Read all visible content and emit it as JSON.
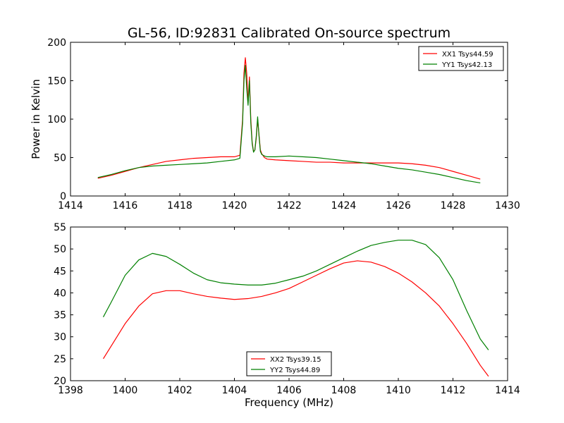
{
  "figure": {
    "title": "GL-56, ID:92831 Calibrated On-source spectrum",
    "colors": {
      "xx": "#ff0000",
      "yy": "#008000",
      "axes": "#000000",
      "background": "#ffffff"
    }
  },
  "chart_data": [
    {
      "type": "line",
      "title": "GL-56, ID:92831 Calibrated On-source spectrum",
      "xlabel": "",
      "ylabel": "Power in Kelvin",
      "xlim": [
        1414,
        1430
      ],
      "ylim": [
        0,
        200
      ],
      "xticks": [
        "1414",
        "1416",
        "1418",
        "1420",
        "1422",
        "1424",
        "1426",
        "1428",
        "1430"
      ],
      "yticks": [
        "0",
        "50",
        "100",
        "150",
        "200"
      ],
      "grid": false,
      "legend_position": "top-right",
      "series": [
        {
          "name": "XX1 Tsys44.59",
          "color": "#ff0000",
          "x": [
            1415.0,
            1415.5,
            1416.0,
            1416.5,
            1417.0,
            1417.5,
            1418.0,
            1418.5,
            1419.0,
            1419.5,
            1420.0,
            1420.2,
            1420.3,
            1420.35,
            1420.4,
            1420.45,
            1420.5,
            1420.55,
            1420.6,
            1420.65,
            1420.7,
            1420.75,
            1420.8,
            1420.85,
            1420.9,
            1420.95,
            1421.0,
            1421.1,
            1421.2,
            1421.5,
            1422.0,
            1422.5,
            1423.0,
            1423.5,
            1424.0,
            1424.5,
            1425.0,
            1425.5,
            1426.0,
            1426.5,
            1427.0,
            1427.5,
            1428.0,
            1428.5,
            1429.0
          ],
          "y": [
            23,
            27,
            32,
            37,
            41,
            45,
            47,
            49,
            50,
            51,
            51,
            53,
            100,
            160,
            180,
            160,
            120,
            155,
            100,
            70,
            58,
            60,
            75,
            100,
            80,
            60,
            55,
            50,
            48,
            47,
            46,
            45,
            44,
            44,
            43,
            43,
            43,
            43,
            43,
            42,
            40,
            37,
            32,
            27,
            22
          ]
        },
        {
          "name": "YY1 Tsys42.13",
          "color": "#008000",
          "x": [
            1415.0,
            1415.5,
            1416.0,
            1416.5,
            1417.0,
            1417.5,
            1418.0,
            1418.5,
            1419.0,
            1419.5,
            1420.0,
            1420.2,
            1420.3,
            1420.35,
            1420.4,
            1420.45,
            1420.5,
            1420.55,
            1420.6,
            1420.65,
            1420.7,
            1420.75,
            1420.8,
            1420.85,
            1420.9,
            1420.95,
            1421.0,
            1421.1,
            1421.2,
            1421.5,
            1422.0,
            1422.5,
            1423.0,
            1423.5,
            1424.0,
            1424.5,
            1425.0,
            1425.5,
            1426.0,
            1426.5,
            1427.0,
            1427.5,
            1428.0,
            1428.5,
            1429.0
          ],
          "y": [
            24,
            28,
            33,
            37,
            39,
            40,
            41,
            42,
            43,
            45,
            47,
            49,
            95,
            150,
            170,
            140,
            118,
            150,
            95,
            68,
            57,
            60,
            78,
            103,
            78,
            58,
            54,
            52,
            51,
            51,
            52,
            51,
            50,
            48,
            46,
            44,
            42,
            39,
            36,
            34,
            31,
            28,
            24,
            20,
            17
          ]
        }
      ]
    },
    {
      "type": "line",
      "title": "",
      "xlabel": "Frequency (MHz)",
      "ylabel": "",
      "xlim": [
        1398,
        1414
      ],
      "ylim": [
        20,
        55
      ],
      "xticks": [
        "1398",
        "1400",
        "1402",
        "1404",
        "1406",
        "1408",
        "1410",
        "1412",
        "1414"
      ],
      "yticks": [
        "20",
        "25",
        "30",
        "35",
        "40",
        "45",
        "50",
        "55"
      ],
      "grid": false,
      "legend_position": "bottom-center",
      "series": [
        {
          "name": "XX2 Tsys39.15",
          "color": "#ff0000",
          "x": [
            1399.2,
            1399.5,
            1400.0,
            1400.5,
            1401.0,
            1401.5,
            1402.0,
            1402.5,
            1403.0,
            1403.5,
            1404.0,
            1404.5,
            1405.0,
            1405.5,
            1406.0,
            1406.5,
            1407.0,
            1407.5,
            1408.0,
            1408.5,
            1409.0,
            1409.5,
            1410.0,
            1410.5,
            1411.0,
            1411.5,
            1412.0,
            1412.5,
            1413.0,
            1413.3
          ],
          "y": [
            25,
            28,
            33,
            37,
            39.8,
            40.5,
            40.5,
            39.8,
            39.2,
            38.8,
            38.5,
            38.7,
            39.2,
            40,
            41,
            42.5,
            44,
            45.5,
            46.8,
            47.3,
            47,
            46,
            44.5,
            42.5,
            40,
            37,
            33,
            28.5,
            23.5,
            21
          ]
        },
        {
          "name": "YY2 Tsys44.89",
          "color": "#008000",
          "x": [
            1399.2,
            1399.5,
            1400.0,
            1400.5,
            1401.0,
            1401.5,
            1402.0,
            1402.5,
            1403.0,
            1403.5,
            1404.0,
            1404.5,
            1405.0,
            1405.5,
            1406.0,
            1406.5,
            1407.0,
            1407.5,
            1408.0,
            1408.5,
            1409.0,
            1409.5,
            1410.0,
            1410.5,
            1411.0,
            1411.5,
            1412.0,
            1412.5,
            1413.0,
            1413.3
          ],
          "y": [
            34.5,
            38,
            44,
            47.5,
            49,
            48.3,
            46.5,
            44.5,
            43,
            42.3,
            42,
            41.8,
            41.8,
            42.2,
            43,
            43.8,
            45,
            46.5,
            48,
            49.5,
            50.8,
            51.5,
            52,
            52,
            51,
            48,
            43,
            36,
            29.5,
            27
          ]
        }
      ]
    }
  ]
}
